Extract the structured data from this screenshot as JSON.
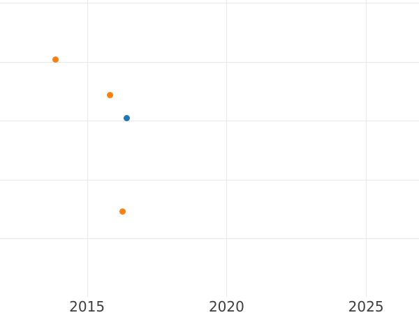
{
  "chart_data": {
    "type": "scatter",
    "title": "",
    "xlabel": "",
    "ylabel": "",
    "x_tick_labels": [
      "2015",
      "2020",
      "2025"
    ],
    "x_ticks": [
      2015,
      2020,
      2025
    ],
    "xlim": [
      2011.88,
      2026.9
    ],
    "ylim": [
      -0.28,
      5.05
    ],
    "y_gridlines": [
      1,
      2,
      3,
      4,
      5
    ],
    "y_axis_labels_visible": false,
    "plot_bottom_value": 0,
    "grid": true,
    "legend_position": "none",
    "series": [
      {
        "name": "blue-series",
        "color": "#1f77b4",
        "points": [
          {
            "x": 2016.43,
            "y": 3.04
          }
        ]
      },
      {
        "name": "orange-series",
        "color": "#ff7f0e",
        "points": [
          {
            "x": 2013.88,
            "y": 4.04
          },
          {
            "x": 2015.81,
            "y": 3.43
          },
          {
            "x": 2016.28,
            "y": 1.46
          }
        ]
      }
    ]
  },
  "style": {
    "background_color": "#ffffff",
    "gridline_color": "#e8e8e8",
    "tick_label_color": "#3d3d3d"
  }
}
